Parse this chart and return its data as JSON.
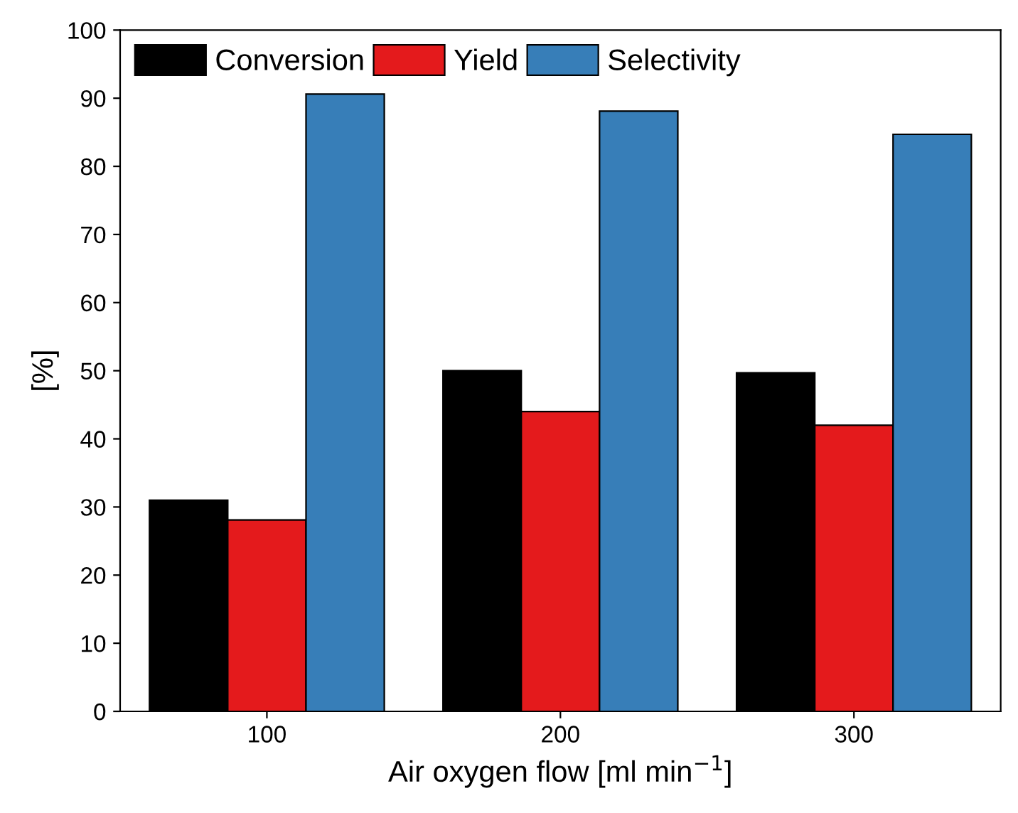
{
  "chart_data": {
    "type": "bar",
    "xlabel": "Air oxygen flow [ml min$^{−1}$]",
    "ylabel": "[%]",
    "categories": [
      "100",
      "200",
      "300"
    ],
    "series": [
      {
        "name": "Conversion",
        "color": "#000000",
        "values": [
          31.0,
          50.0,
          49.7
        ]
      },
      {
        "name": "Yield",
        "color": "#e41a1c",
        "values": [
          28.1,
          44.0,
          42.0
        ]
      },
      {
        "name": "Selectivity",
        "color": "#377eb8",
        "values": [
          90.6,
          88.1,
          84.7
        ]
      }
    ],
    "ylim": [
      0,
      100
    ],
    "yticks": [
      0,
      10,
      20,
      30,
      40,
      50,
      60,
      70,
      80,
      90,
      100
    ],
    "grid": false,
    "legend": "top left"
  }
}
